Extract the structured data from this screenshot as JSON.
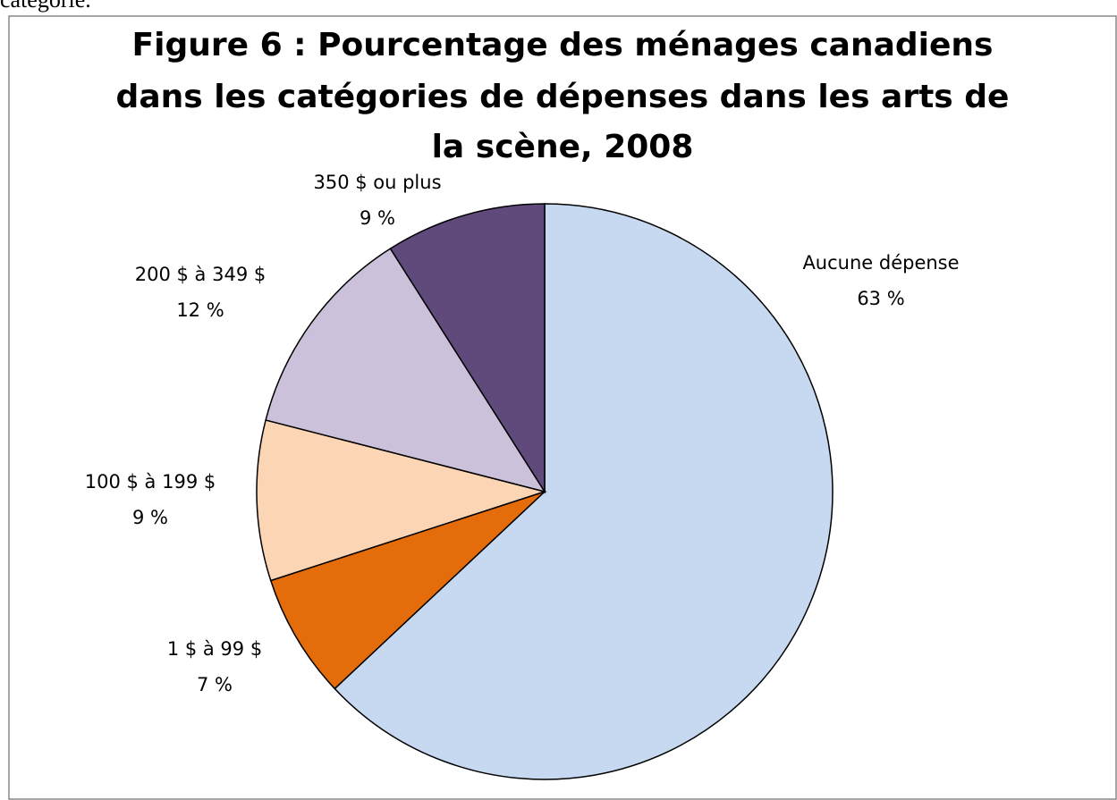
{
  "caption": "catégorie.",
  "chart_data": {
    "type": "pie",
    "title": [
      "Figure 6 : Pourcentage des ménages canadiens",
      "dans les catégories de dépenses dans les arts de",
      "la scène, 2008"
    ],
    "categories": [
      "Aucune dépense",
      "1 $ à 99 $",
      "100 $ à 199 $",
      "200 $ à 349 $",
      "350 $ ou plus"
    ],
    "values": [
      63,
      7,
      9,
      12,
      9
    ],
    "value_labels": [
      "63 %",
      "7 %",
      "9 %",
      "12 %",
      "9 %"
    ],
    "colors": [
      "#c6d9f1",
      "#e46c0a",
      "#fcd5b5",
      "#ccc1da",
      "#604a7b"
    ]
  }
}
